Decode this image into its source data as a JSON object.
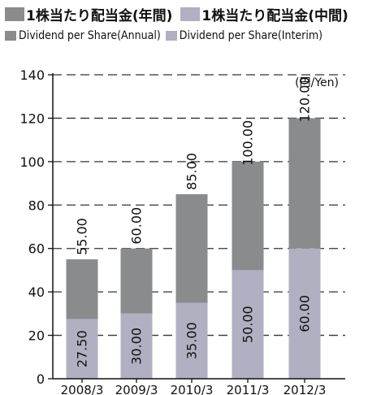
{
  "legend": {
    "annual_jp": "1株当たり配当金(年間)",
    "interim_jp": "1株当たり配当金(中間)",
    "annual_en": "Dividend per Share(Annual)",
    "interim_en": "Dividend per Share(Interim)"
  },
  "colors": {
    "annual": "#8a8b8d",
    "interim": "#b1b0c2",
    "axis": "#111111",
    "grid": "#333333"
  },
  "chart_data": {
    "type": "bar",
    "stacked": true,
    "unit_label": "(円/Yen)",
    "categories": [
      "2008/3",
      "2009/3",
      "2010/3",
      "2011/3",
      "2012/3"
    ],
    "series": [
      {
        "name": "Dividend per Share(Interim)",
        "values": [
          27.5,
          30,
          35,
          50,
          60
        ],
        "labels": [
          "27.50",
          "30.00",
          "35.00",
          "50.00",
          "60.00"
        ]
      },
      {
        "name": "Dividend per Share(Annual)",
        "totals": [
          55,
          60,
          85,
          100,
          120
        ],
        "labels": [
          "55.00",
          "60.00",
          "85.00",
          "100.00",
          "120.00"
        ]
      }
    ],
    "ylim": [
      0,
      140
    ],
    "yticks": [
      0,
      20,
      40,
      60,
      80,
      100,
      120,
      140
    ],
    "grid": "dashed horizontal",
    "legend_position": "top"
  }
}
